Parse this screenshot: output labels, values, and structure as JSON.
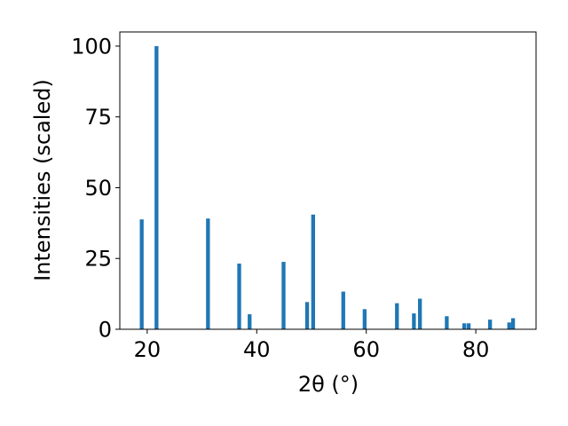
{
  "chart_data": {
    "type": "bar",
    "xlabel": "2θ (°)",
    "ylabel": "Intensities (scaled)",
    "xlim": [
      15,
      91
    ],
    "ylim": [
      0,
      105
    ],
    "xticks": [
      20,
      40,
      60,
      80
    ],
    "yticks": [
      0,
      25,
      50,
      75,
      100
    ],
    "grid": false,
    "bar_color": "#1f77b4",
    "bar_width": 0.7,
    "series": [
      {
        "x": [
          19.0,
          21.7,
          31.1,
          36.8,
          38.7,
          44.9,
          49.2,
          50.3,
          55.8,
          59.7,
          65.6,
          68.7,
          69.8,
          74.7,
          77.9,
          78.7,
          82.6,
          86.1,
          86.8
        ],
        "values": [
          38.8,
          100,
          39.1,
          23.2,
          5.3,
          23.8,
          9.6,
          40.5,
          13.3,
          7.1,
          9.2,
          5.6,
          10.8,
          4.6,
          2.1,
          2.1,
          3.4,
          2.4,
          3.9
        ]
      }
    ]
  }
}
